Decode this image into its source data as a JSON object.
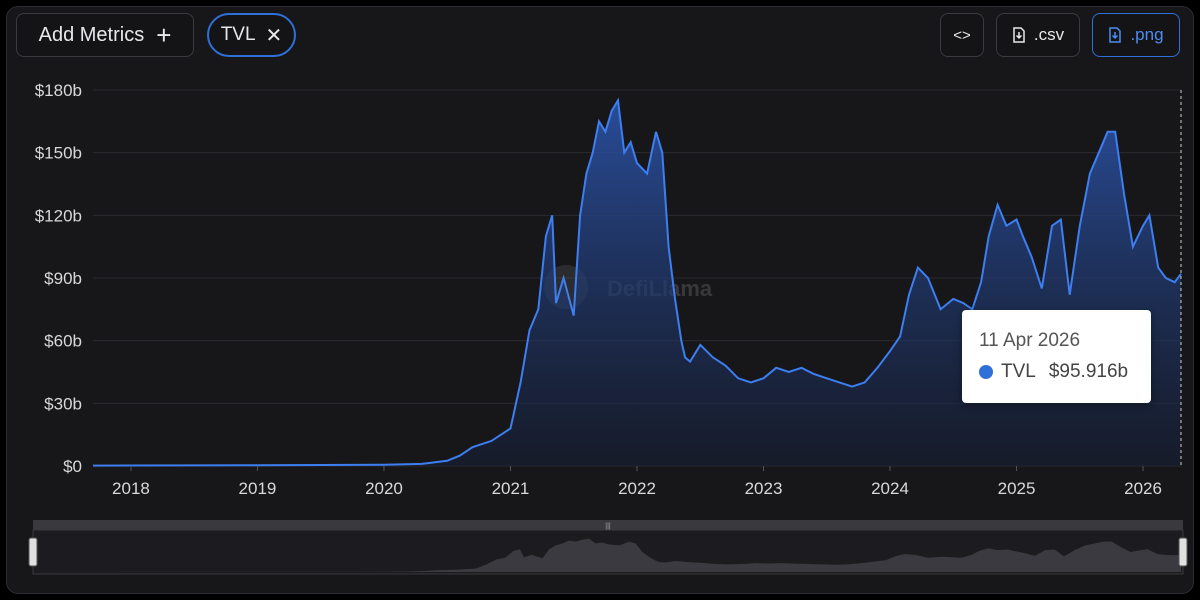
{
  "toolbar": {
    "add_metrics_label": "Add Metrics",
    "add_icon": "plus-icon",
    "metric_pill_label": "TVL",
    "remove_icon": "close-icon",
    "embed_icon": "code-icon",
    "csv_label": ".csv",
    "png_label": ".png",
    "download_icon": "download-icon"
  },
  "colors": {
    "accent": "#2f6fd8",
    "line": "#3d7ef0",
    "background": "#17171a"
  },
  "watermark": "DefiLlama",
  "tooltip": {
    "date": "11 Apr 2026",
    "series": "TVL",
    "value": "$95.916b"
  },
  "chart_data": {
    "type": "area",
    "y_tick_labels": [
      "$0",
      "$30b",
      "$60b",
      "$90b",
      "$120b",
      "$150b",
      "$180b"
    ],
    "x_tick_labels": [
      "2018",
      "2019",
      "2020",
      "2021",
      "2022",
      "2023",
      "2024",
      "2025",
      "2026"
    ],
    "ylim": [
      0,
      180
    ],
    "xlim": [
      2017.7,
      2026.3
    ],
    "grid": true,
    "series": [
      {
        "values_unit": "billions USD",
        "x": [
          2017.7,
          2018.5,
          2019.0,
          2019.5,
          2020.0,
          2020.3,
          2020.5,
          2020.6,
          2020.7,
          2020.85,
          2021.0,
          2021.08,
          2021.15,
          2021.22,
          2021.28,
          2021.33,
          2021.36,
          2021.42,
          2021.5,
          2021.55,
          2021.6,
          2021.65,
          2021.7,
          2021.75,
          2021.8,
          2021.85,
          2021.9,
          2021.95,
          2022.0,
          2022.08,
          2022.15,
          2022.2,
          2022.25,
          2022.3,
          2022.35,
          2022.38,
          2022.42,
          2022.5,
          2022.6,
          2022.7,
          2022.8,
          2022.9,
          2023.0,
          2023.1,
          2023.2,
          2023.3,
          2023.4,
          2023.5,
          2023.6,
          2023.7,
          2023.8,
          2023.9,
          2024.0,
          2024.08,
          2024.15,
          2024.22,
          2024.3,
          2024.4,
          2024.5,
          2024.58,
          2024.65,
          2024.72,
          2024.78,
          2024.85,
          2024.92,
          2025.0,
          2025.05,
          2025.12,
          2025.2,
          2025.28,
          2025.35,
          2025.42,
          2025.5,
          2025.58,
          2025.65,
          2025.72,
          2025.78,
          2025.85,
          2025.92,
          2026.0,
          2026.05,
          2026.12,
          2026.18,
          2026.25,
          2026.3
        ],
        "values": [
          0.2,
          0.3,
          0.4,
          0.5,
          0.6,
          1.0,
          2.5,
          5,
          9,
          12,
          18,
          40,
          65,
          75,
          110,
          120,
          78,
          90,
          72,
          120,
          140,
          150,
          165,
          160,
          170,
          175,
          150,
          155,
          145,
          140,
          160,
          150,
          105,
          80,
          60,
          52,
          50,
          58,
          52,
          48,
          42,
          40,
          42,
          47,
          45,
          47,
          44,
          42,
          40,
          38,
          40,
          47,
          55,
          62,
          82,
          95,
          90,
          75,
          80,
          78,
          75,
          88,
          110,
          125,
          115,
          118,
          110,
          100,
          85,
          115,
          118,
          82,
          115,
          140,
          150,
          160,
          160,
          130,
          105,
          115,
          120,
          95,
          90,
          88,
          92
        ]
      }
    ]
  }
}
